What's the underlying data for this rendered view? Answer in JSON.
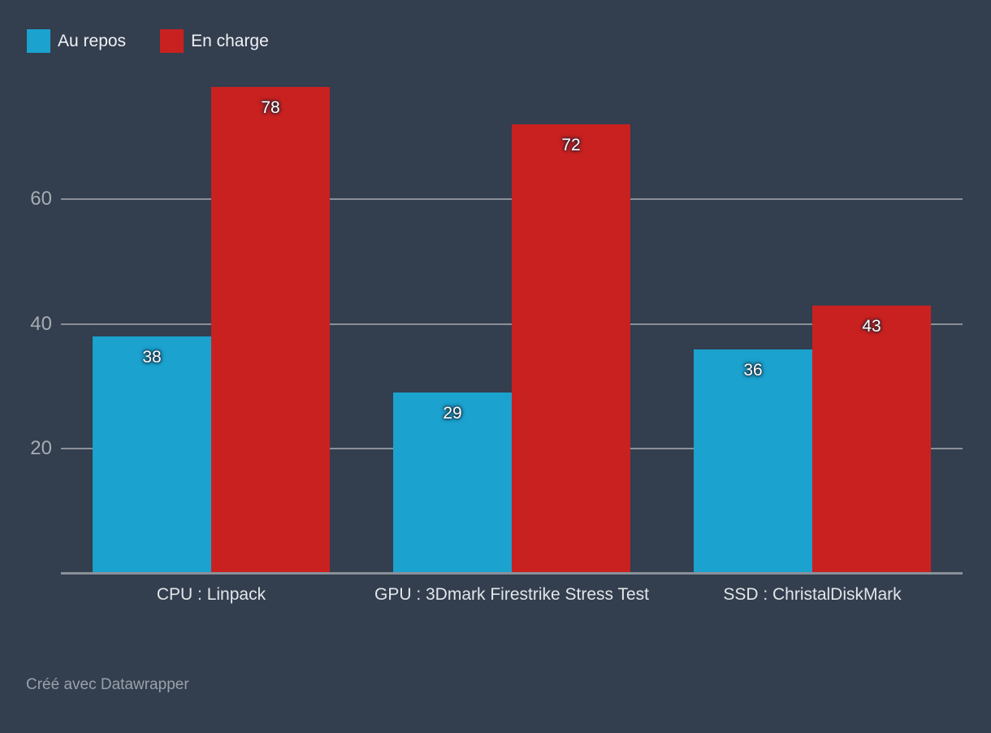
{
  "chart_data": {
    "type": "bar",
    "categories": [
      "CPU : Linpack",
      "GPU : 3Dmark Firestrike Stress Test",
      "SSD : ChristalDiskMark"
    ],
    "series": [
      {
        "name": "Au repos",
        "color": "#1BA2CF",
        "values": [
          38,
          29,
          36
        ]
      },
      {
        "name": "En charge",
        "color": "#C92120",
        "values": [
          78,
          72,
          43
        ]
      }
    ],
    "yticks": [
      20,
      40,
      60
    ],
    "ylim": [
      0,
      78.5
    ],
    "grid": true,
    "legend_position": "top-left",
    "title": "",
    "xlabel": "",
    "ylabel": "",
    "value_labels_shown": true
  },
  "footer": {
    "attribution": "Créé avec Datawrapper"
  },
  "colors": {
    "background": "#333E4E",
    "grid": "#8A9099",
    "axis": "#8A9099",
    "tick_label": "#A6ACB4",
    "category_label": "#E2E6EA",
    "value_label": "#FFFFFF",
    "legend_text": "#F0F2F5",
    "footer_text": "#99A1AA"
  }
}
